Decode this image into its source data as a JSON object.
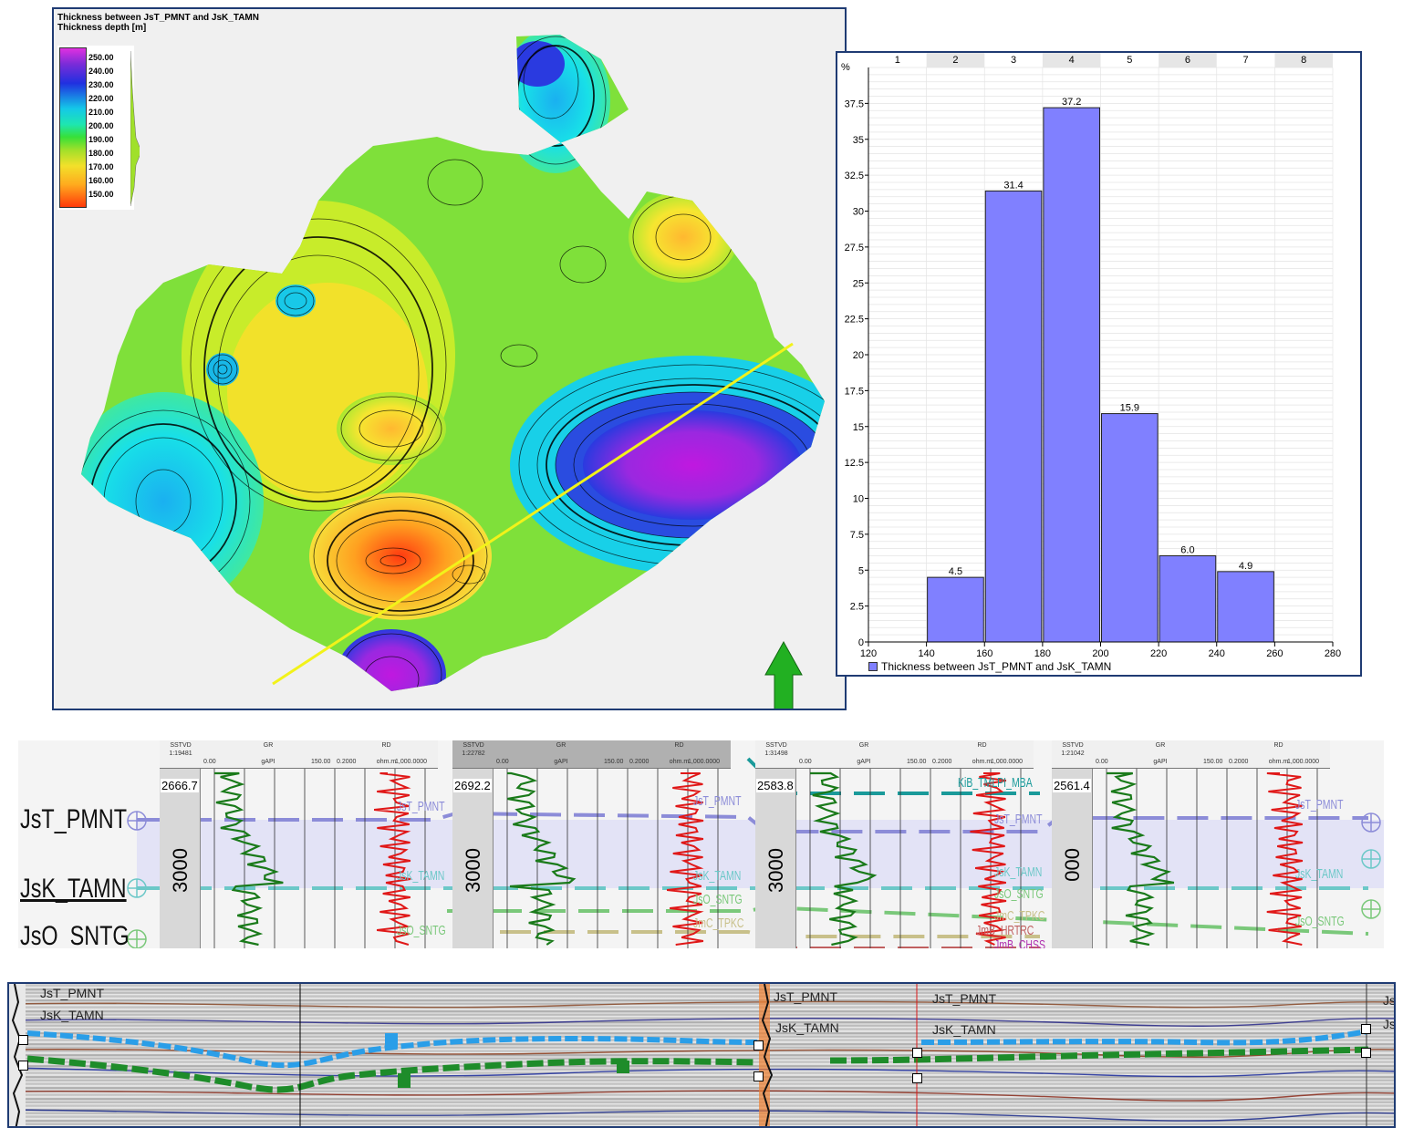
{
  "map": {
    "title_line1": "Thickness between JsT_PMNT and JsK_TAMN",
    "title_line2": "Thickness depth [m]",
    "legend_ticks": [
      "250.00",
      "240.00",
      "230.00",
      "220.00",
      "210.00",
      "200.00",
      "190.00",
      "180.00",
      "170.00",
      "160.00",
      "150.00"
    ],
    "section_line_color": "#f2f21a",
    "arrow_color": "#22b022"
  },
  "chart_data": {
    "type": "bar",
    "title": "",
    "y_unit_label": "%",
    "column_headers": [
      "1",
      "2",
      "3",
      "4",
      "5",
      "6",
      "7",
      "8"
    ],
    "bins": [
      [
        140,
        160
      ],
      [
        160,
        180
      ],
      [
        180,
        200
      ],
      [
        200,
        220
      ],
      [
        220,
        240
      ],
      [
        240,
        260
      ]
    ],
    "values": [
      4.5,
      31.4,
      37.2,
      15.9,
      6.0,
      4.9
    ],
    "data_labels": [
      "4.5",
      "31.4",
      "37.2",
      "15.9",
      "6.0",
      "4.9"
    ],
    "xlim": [
      120,
      280
    ],
    "x_ticks": [
      "120",
      "140",
      "160",
      "180",
      "200",
      "220",
      "240",
      "260",
      "280"
    ],
    "ylim": [
      0,
      40
    ],
    "y_ticks": [
      "0",
      "2.5",
      "5",
      "7.5",
      "10",
      "12.5",
      "15",
      "17.5",
      "20",
      "22.5",
      "25",
      "27.5",
      "30",
      "32.5",
      "35",
      "37.5"
    ],
    "series": [
      {
        "name": "Thickness between JsT_PMNT and JsK_TAMN",
        "color": "#8080ff"
      }
    ],
    "grid": true,
    "legend_position": "bottom-left"
  },
  "wells": {
    "surfaces": [
      "JsT_PMNT",
      "JsK_TAMN",
      "JsO_SNTG"
    ],
    "tracks": [
      {
        "sstvd": "SSTVD",
        "scale": "1:19481",
        "gr": "GR",
        "gr_unit": "gAPI",
        "gr_min": "0.00",
        "gr_max": "150.00",
        "rd": "RD",
        "rd_unit": "ohm.m",
        "rd_min": "0.2000",
        "rd_max": "1,000.0000",
        "depth": "2666.7",
        "depth_mark": "3000"
      },
      {
        "sstvd": "SSTVD",
        "scale": "1:22782",
        "gr": "GR",
        "gr_unit": "gAPI",
        "gr_min": "0.00",
        "gr_max": "150.00",
        "rd": "RD",
        "rd_unit": "ohm.m",
        "rd_min": "0.2000",
        "rd_max": "1,000.0000",
        "depth": "2692.2",
        "depth_mark": "3000"
      },
      {
        "sstvd": "SSTVD",
        "scale": "1:31498",
        "gr": "GR",
        "gr_unit": "gAPI",
        "gr_min": "0.00",
        "gr_max": "150.00",
        "rd": "RD",
        "rd_unit": "ohm.m",
        "rd_min": "0.2000",
        "rd_max": "1,000.0000",
        "depth": "2583.8",
        "depth_mark": "3000"
      },
      {
        "sstvd": "SSTVD",
        "scale": "1:21042",
        "gr": "GR",
        "gr_unit": "gAPI",
        "gr_min": "0.00",
        "gr_max": "150.00",
        "rd": "RD",
        "rd_unit": "ohm.m",
        "rd_min": "0.2000",
        "rd_max": "1,000.0000",
        "depth": "2561.4",
        "depth_mark": "000"
      }
    ],
    "track_surface_labels": [
      "JsT_PMNT",
      "JsK_TAMN",
      "JsO_SNTG",
      "KiB_TMLPI_MBA",
      "JmC_TPKC",
      "JmB_HRTRC",
      "JmB_CHSS"
    ],
    "colors": {
      "pmnt": "#8c8cd8",
      "tamn": "#6cc8c8",
      "sntg": "#7ac87a",
      "fill": "#dcdcf6",
      "mba": "#1a9a9a",
      "tpkc": "#c8c08a",
      "hrtrc": "#c06060",
      "gr": "#1a7a1a",
      "rd": "#e01818"
    }
  },
  "seismic": {
    "labels": [
      "JsT_PMNT",
      "JsK_TAMN",
      "JsT_PMNT",
      "JsK_TAMN",
      "JsT_PMNT",
      "JsK_TAMN"
    ],
    "right_labels": [
      "Js",
      "Js"
    ],
    "blue_horizon": "#2a9ee8",
    "green_horizon": "#1e8c2a"
  }
}
